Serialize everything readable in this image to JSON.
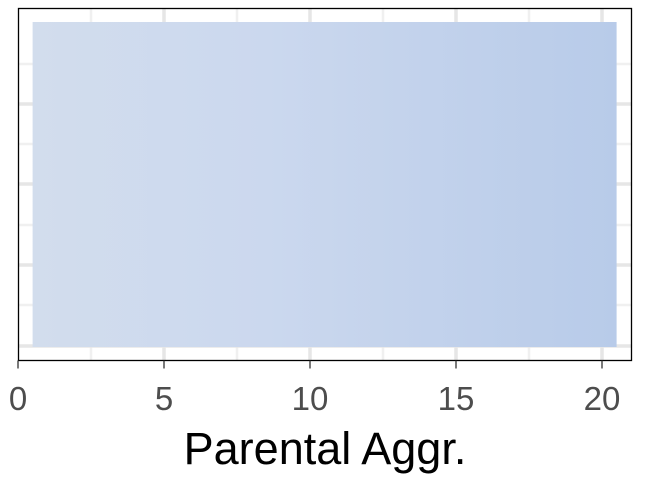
{
  "chart_data": {
    "type": "bar",
    "orientation": "horizontal",
    "title": "",
    "xlabel": "Parental Aggr.",
    "ylabel": "",
    "xlim": [
      0,
      21
    ],
    "x_ticks": [
      0,
      5,
      10,
      15,
      20
    ],
    "x_tick_labels": [
      "0",
      "5",
      "10",
      "15",
      "20"
    ],
    "y_tick_labels": [],
    "grid": true,
    "legend": "none",
    "bars": [
      {
        "start": 0.5,
        "end": 20.5
      }
    ],
    "bar_gradient": [
      "#d2dded",
      "#cbd8ee",
      "#b8cbe9"
    ],
    "colors": {
      "grid_major": "#e6e6e6",
      "grid_minor": "#f0f0f0",
      "panel_border": "#000000"
    }
  }
}
